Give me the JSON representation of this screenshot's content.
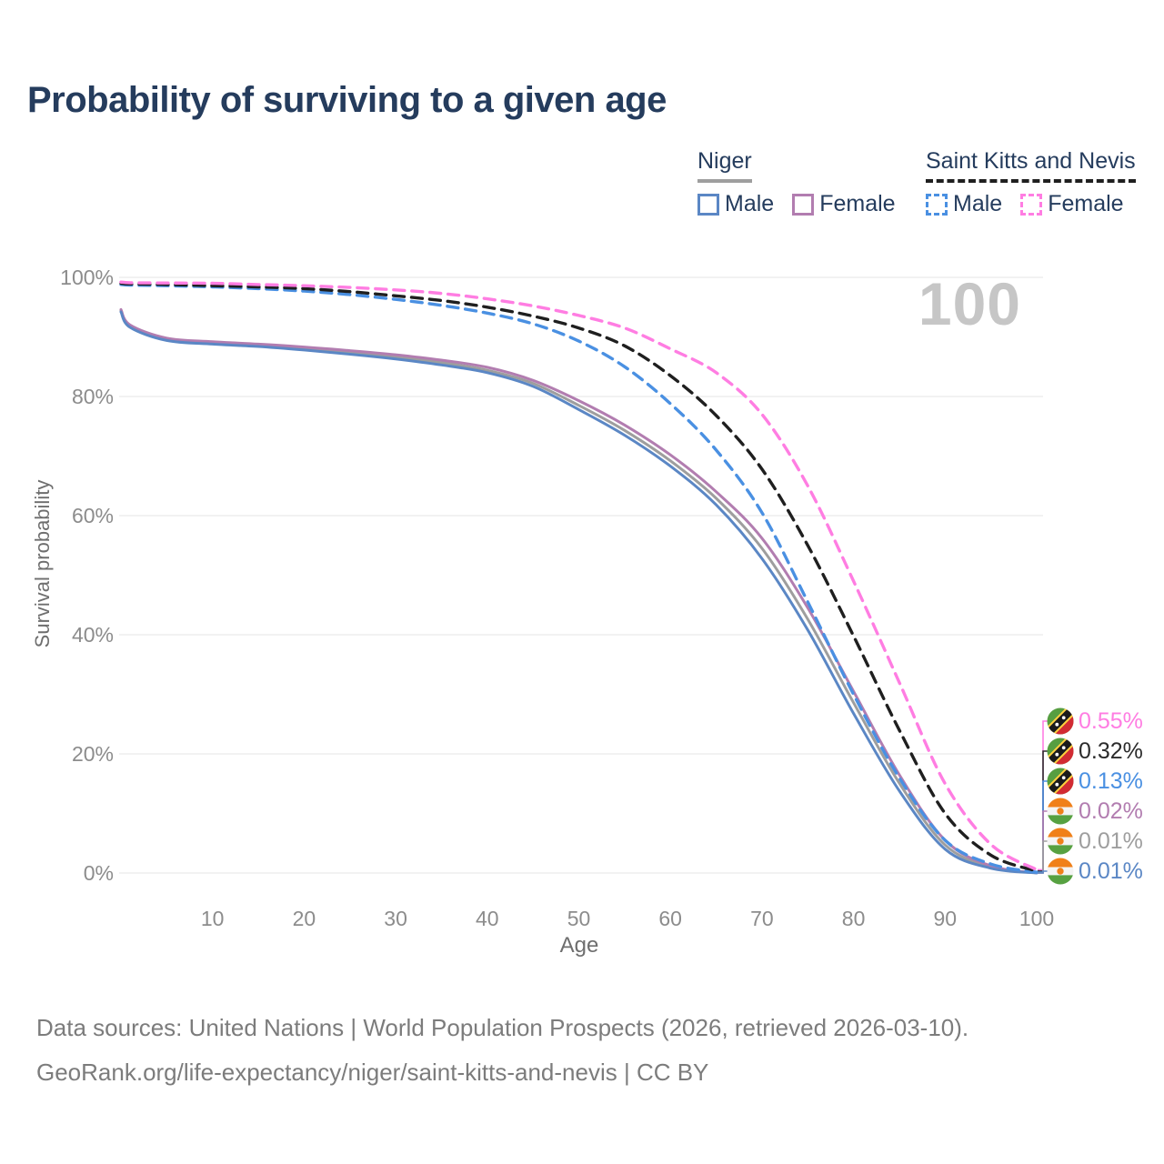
{
  "title": "Probability of surviving to a given age",
  "watermark": "100",
  "legend": {
    "groups": [
      {
        "label": "Niger",
        "underline_style": "solid",
        "underline_color": "#9e9e9e",
        "items": [
          {
            "label": "Male",
            "color": "#5b87c5",
            "dashed": false
          },
          {
            "label": "Female",
            "color": "#b27db0",
            "dashed": false
          }
        ]
      },
      {
        "label": "Saint Kitts and Nevis",
        "underline_style": "dashed",
        "underline_color": "#1f1f1f",
        "items": [
          {
            "label": "Male",
            "color": "#4a90e2",
            "dashed": true
          },
          {
            "label": "Female",
            "color": "#ff7de2",
            "dashed": true
          }
        ]
      }
    ]
  },
  "axes": {
    "x": {
      "title": "Age",
      "ticks": [
        10,
        20,
        30,
        40,
        50,
        60,
        70,
        80,
        90,
        100
      ]
    },
    "y": {
      "title": "Survival probability",
      "ticks": [
        {
          "value": 0,
          "label": "0%"
        },
        {
          "value": 20,
          "label": "20%"
        },
        {
          "value": 40,
          "label": "40%"
        },
        {
          "value": 60,
          "label": "60%"
        },
        {
          "value": 80,
          "label": "80%"
        },
        {
          "value": 100,
          "label": "100%"
        }
      ]
    }
  },
  "chart_data": {
    "type": "line",
    "title": "Probability of surviving to a given age",
    "xlabel": "Age",
    "ylabel": "Survival probability",
    "xlim": [
      0,
      100
    ],
    "ylim": [
      0,
      100
    ],
    "grid": "horizontal",
    "legend_position": "top-right",
    "x": [
      0,
      1,
      5,
      10,
      15,
      20,
      25,
      30,
      35,
      40,
      45,
      50,
      55,
      60,
      65,
      70,
      75,
      80,
      85,
      90,
      95,
      100
    ],
    "series": [
      {
        "id": "niger-both",
        "name": "Niger Both sexes",
        "country": "Niger",
        "sex": "Both",
        "color": "#9e9e9e",
        "dashed": false,
        "values": [
          94.4,
          91.8,
          89.6,
          89.0,
          88.6,
          88.0,
          87.4,
          86.6,
          85.7,
          84.4,
          82.2,
          78.5,
          74.3,
          69.2,
          62.9,
          54.5,
          42.6,
          28.6,
          15.1,
          4.7,
          1.0,
          0.01
        ]
      },
      {
        "id": "niger-female",
        "name": "Niger Female",
        "country": "Niger",
        "sex": "Female",
        "color": "#b27db0",
        "dashed": false,
        "values": [
          94.6,
          92.0,
          89.8,
          89.2,
          88.8,
          88.3,
          87.7,
          87.0,
          86.1,
          84.9,
          82.7,
          79.3,
          75.2,
          70.2,
          64.0,
          56.2,
          44.5,
          30.5,
          16.5,
          5.5,
          1.2,
          0.02
        ]
      },
      {
        "id": "niger-male",
        "name": "Niger Male",
        "country": "Niger",
        "sex": "Male",
        "color": "#5b87c5",
        "dashed": false,
        "values": [
          94.2,
          91.6,
          89.4,
          88.8,
          88.4,
          87.8,
          87.1,
          86.3,
          85.3,
          84.0,
          81.7,
          77.8,
          73.5,
          68.3,
          61.8,
          52.8,
          40.8,
          26.8,
          13.8,
          4.0,
          0.8,
          0.01
        ]
      },
      {
        "id": "skn-male",
        "name": "Saint Kitts and Nevis Male",
        "country": "Saint Kitts and Nevis",
        "sex": "Male",
        "color": "#4a90e2",
        "dashed": true,
        "values": [
          98.8,
          98.7,
          98.6,
          98.4,
          98.1,
          97.7,
          97.1,
          96.3,
          95.3,
          94.0,
          92.2,
          89.3,
          85.0,
          78.8,
          71.0,
          60.5,
          45.5,
          30.0,
          16.0,
          5.5,
          1.5,
          0.13
        ]
      },
      {
        "id": "skn-both",
        "name": "Saint Kitts and Nevis Both sexes",
        "country": "Saint Kitts and Nevis",
        "sex": "Both",
        "color": "#1f1f1f",
        "dashed": true,
        "values": [
          99.0,
          98.9,
          98.8,
          98.6,
          98.4,
          98.1,
          97.6,
          96.9,
          96.1,
          95.0,
          93.5,
          91.5,
          88.5,
          83.5,
          76.8,
          67.8,
          55.0,
          39.8,
          24.0,
          10.0,
          3.0,
          0.32
        ]
      },
      {
        "id": "skn-female",
        "name": "Saint Kitts and Nevis Female",
        "country": "Saint Kitts and Nevis",
        "sex": "Female",
        "color": "#ff7de2",
        "dashed": true,
        "values": [
          99.2,
          99.1,
          99.05,
          99.0,
          98.8,
          98.6,
          98.3,
          97.9,
          97.3,
          96.4,
          95.2,
          93.6,
          91.5,
          88.0,
          84.0,
          77.0,
          65.0,
          49.0,
          32.0,
          15.0,
          4.8,
          0.55
        ]
      }
    ]
  },
  "end_labels": [
    {
      "flag": "skn",
      "series": "skn-female",
      "value": "0.55%",
      "color": "#ff7de2"
    },
    {
      "flag": "skn",
      "series": "skn-both",
      "value": "0.32%",
      "color": "#2b2b2b"
    },
    {
      "flag": "skn",
      "series": "skn-male",
      "value": "0.13%",
      "color": "#4a90e2"
    },
    {
      "flag": "niger",
      "series": "niger-female",
      "value": "0.02%",
      "color": "#b27db0"
    },
    {
      "flag": "niger",
      "series": "niger-both",
      "value": "0.01%",
      "color": "#9e9e9e"
    },
    {
      "flag": "niger",
      "series": "niger-male",
      "value": "0.01%",
      "color": "#5b87c5"
    }
  ],
  "flags": {
    "skn": {
      "green": "#569e41",
      "red": "#d22b33",
      "band": "#1b1b1b",
      "yellow": "#ffd23e",
      "star": "#ffffff"
    },
    "niger": {
      "orange": "#f08019",
      "white": "#f4f4f4",
      "green": "#57a141"
    }
  },
  "footer": {
    "line1": "Data sources: United Nations | World Population Prospects (2026, retrieved 2026-03-10).",
    "line2": "GeoRank.org/life-expectancy/niger/saint-kitts-and-nevis | CC BY"
  }
}
